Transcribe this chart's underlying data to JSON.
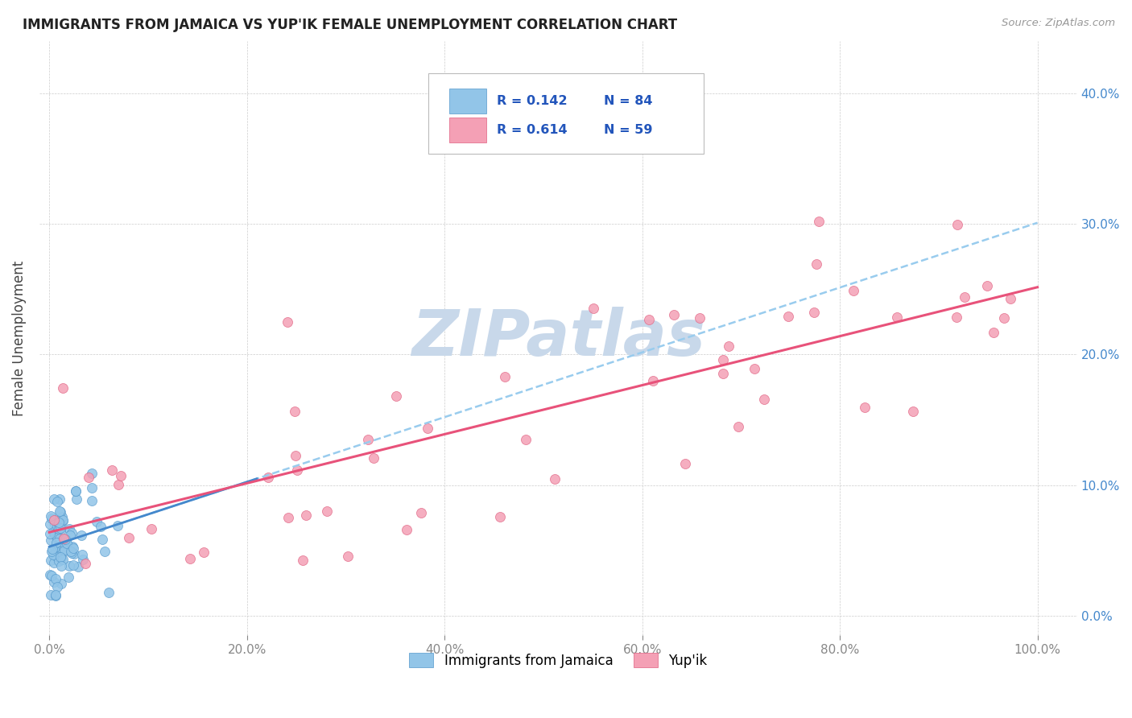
{
  "title": "IMMIGRANTS FROM JAMAICA VS YUP'IK FEMALE UNEMPLOYMENT CORRELATION CHART",
  "source": "Source: ZipAtlas.com",
  "ylabel": "Female Unemployment",
  "color_jamaica": "#92C5E8",
  "color_yupik": "#F4A0B5",
  "edge_jamaica": "#5599CC",
  "edge_yupik": "#E06080",
  "line_color_jamaica": "#4488CC",
  "line_color_yupik": "#E8527A",
  "line_color_dashed": "#99CCEE",
  "watermark_color": "#C8D8EA",
  "legend_r1": "R = 0.142",
  "legend_n1": "N = 84",
  "legend_r2": "R = 0.614",
  "legend_n2": "N = 59",
  "legend_text_color": "#2255BB"
}
